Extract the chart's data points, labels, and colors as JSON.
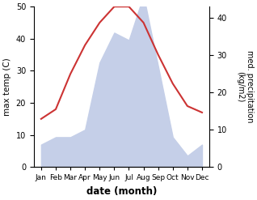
{
  "months": [
    "Jan",
    "Feb",
    "Mar",
    "Apr",
    "May",
    "Jun",
    "Jul",
    "Aug",
    "Sep",
    "Oct",
    "Nov",
    "Dec"
  ],
  "month_x": [
    0,
    1,
    2,
    3,
    4,
    5,
    6,
    7,
    8,
    9,
    10,
    11
  ],
  "temperature": [
    15,
    18,
    29,
    38,
    45,
    50,
    50,
    45,
    35,
    26,
    19,
    17
  ],
  "precipitation": [
    6,
    8,
    8,
    10,
    28,
    36,
    34,
    46,
    27,
    8,
    3,
    6
  ],
  "temp_color": "#cc3333",
  "precip_fill_color": "#c5cfe8",
  "xlabel": "date (month)",
  "ylabel_left": "max temp (C)",
  "ylabel_right": "med. precipitation\n(kg/m2)",
  "ylim_left": [
    0,
    50
  ],
  "ylim_right": [
    0,
    43
  ],
  "yticks_left": [
    0,
    10,
    20,
    30,
    40,
    50
  ],
  "yticks_right": [
    0,
    10,
    20,
    30,
    40
  ],
  "background_color": "#ffffff"
}
